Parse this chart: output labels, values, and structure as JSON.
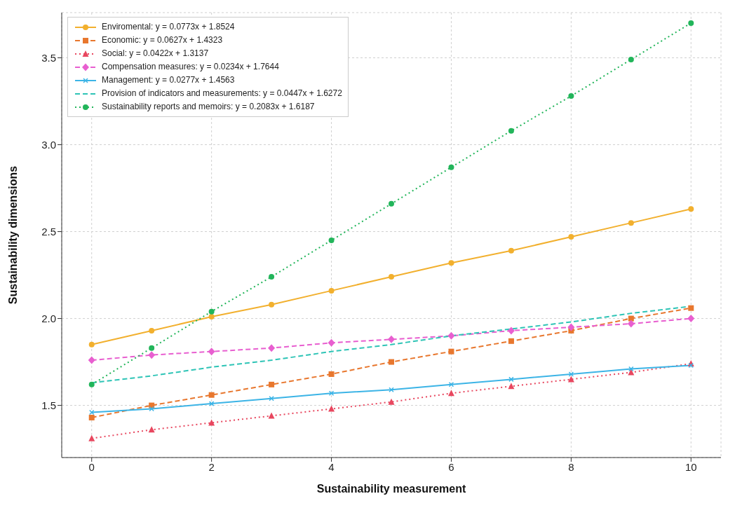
{
  "chart_data": {
    "type": "line",
    "xlabel": "Sustainability measurement",
    "ylabel": "Sustainability dimensions",
    "x": [
      0,
      1,
      2,
      3,
      4,
      5,
      6,
      7,
      8,
      9,
      10
    ],
    "xlim": [
      -0.5,
      10.5
    ],
    "xticks": [
      0,
      2,
      4,
      6,
      8,
      10
    ],
    "ylim": [
      1.2,
      3.76
    ],
    "yticks": [
      1.5,
      {
        "value": 2,
        "label": "2.0"
      },
      2.5,
      {
        "value": 3,
        "label": "3.0"
      },
      3.5
    ],
    "grid": true,
    "legend": "top left",
    "series": [
      {
        "name": "Enviromental: y = 0.0773x + 1.8524",
        "color": "#f2b02e",
        "marker": "circle",
        "line_style": "solid",
        "values": [
          1.85,
          1.93,
          2.01,
          2.08,
          2.16,
          2.24,
          2.32,
          2.39,
          2.47,
          2.55,
          2.63
        ]
      },
      {
        "name": "Economic: y = 0.0627x + 1.4323",
        "color": "#e8772e",
        "marker": "square",
        "line_style": "dashed",
        "values": [
          1.43,
          1.5,
          1.56,
          1.62,
          1.68,
          1.75,
          1.81,
          1.87,
          1.93,
          2.0,
          2.06
        ]
      },
      {
        "name": "Social: y = 0.0422x + 1.3137",
        "color": "#e8475f",
        "marker": "triangle",
        "line_style": "dotted",
        "values": [
          1.31,
          1.36,
          1.4,
          1.44,
          1.48,
          1.52,
          1.57,
          1.61,
          1.65,
          1.69,
          1.74
        ]
      },
      {
        "name": "Compensation measures: y = 0.0234x + 1.7644",
        "color": "#e85fd0",
        "marker": "diamond",
        "line_style": "dashed",
        "values": [
          1.76,
          1.79,
          1.81,
          1.83,
          1.86,
          1.88,
          1.9,
          1.93,
          1.95,
          1.97,
          2.0
        ]
      },
      {
        "name": "Management: y = 0.0277x + 1.4563",
        "color": "#3cb4e6",
        "marker": "cross",
        "line_style": "solid",
        "values": [
          1.46,
          1.48,
          1.51,
          1.54,
          1.57,
          1.59,
          1.62,
          1.65,
          1.68,
          1.71,
          1.73
        ]
      },
      {
        "name": "Provision of indicators and measurements: y = 0.0447x + 1.6272",
        "color": "#2ec4b6",
        "marker": "none",
        "line_style": "dashed",
        "values": [
          1.63,
          1.67,
          1.72,
          1.76,
          1.81,
          1.85,
          1.9,
          1.94,
          1.98,
          2.03,
          2.07
        ]
      },
      {
        "name": "Sustainability reports and memoirs: y = 0.2083x + 1.6187",
        "color": "#22b55a",
        "marker": "circle",
        "line_style": "dotted",
        "values": [
          1.62,
          1.83,
          2.04,
          2.24,
          2.45,
          2.66,
          2.87,
          3.08,
          3.28,
          3.49,
          3.7
        ]
      }
    ]
  }
}
